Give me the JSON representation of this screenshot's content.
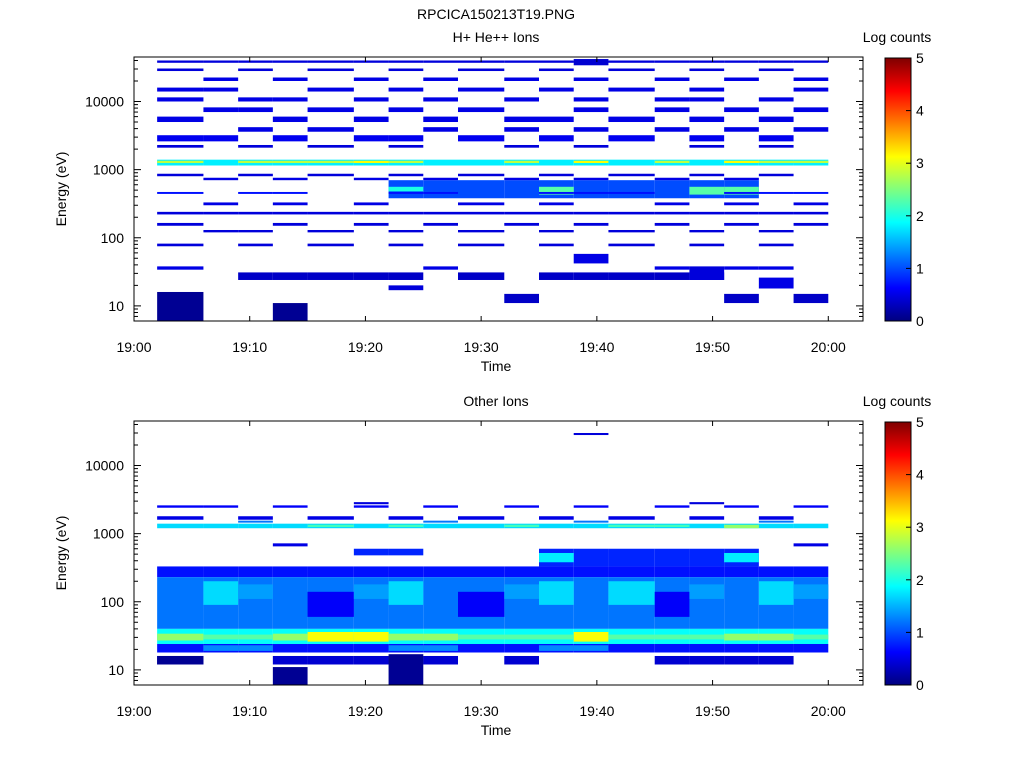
{
  "figure_title": "RPCICA150213T19.PNG",
  "colorbar_colors": [
    "#00007f",
    "#0000ff",
    "#007fff",
    "#00ffff",
    "#7fff7f",
    "#ffff00",
    "#ff7f00",
    "#ff0000",
    "#7f0000"
  ],
  "chart_data": [
    {
      "type": "heatmap",
      "title": "H+ He++ Ions",
      "xlabel": "Time",
      "ylabel": "Energy (eV)",
      "x_scale": "time",
      "y_scale": "log",
      "xlim": [
        "19:00",
        "20:03"
      ],
      "ylim": [
        6,
        45000
      ],
      "x_ticks": [
        "19:00",
        "19:10",
        "19:20",
        "19:30",
        "19:40",
        "19:50",
        "20:00"
      ],
      "y_ticks": [
        10,
        100,
        1000,
        10000
      ],
      "y_tick_labels": [
        "10",
        "100",
        "1000",
        "10000"
      ],
      "colorbar": {
        "label": "Log counts",
        "range": [
          0,
          5
        ],
        "ticks": [
          "0",
          "1",
          "2",
          "3",
          "4",
          "5"
        ]
      },
      "time_bins": [
        "19:02",
        "19:06",
        "19:09",
        "19:12",
        "19:15",
        "19:19",
        "19:22",
        "19:25",
        "19:28",
        "19:32",
        "19:35",
        "19:38",
        "19:41",
        "19:45",
        "19:48",
        "19:51",
        "19:54",
        "19:57"
      ],
      "time_bin_end": "20:00",
      "cells": [
        {
          "bins": "all",
          "e": [
            1150,
            1400
          ],
          "v": 1.8
        },
        {
          "bins": [
            0,
            2,
            3,
            4,
            6,
            9,
            13,
            16,
            17
          ],
          "e": [
            1250,
            1350
          ],
          "v": 2.8
        },
        {
          "bins": [
            5,
            11,
            15
          ],
          "e": [
            1250,
            1350
          ],
          "v": 3.1
        },
        {
          "bins": [
            6,
            7,
            8,
            9,
            10,
            11,
            12,
            13,
            14,
            15
          ],
          "e": [
            380,
            700
          ],
          "v": 1.0
        },
        {
          "bins": [
            10,
            14,
            15
          ],
          "e": [
            430,
            560
          ],
          "v": 2.3
        },
        {
          "bins": [
            6
          ],
          "e": [
            480,
            560
          ],
          "v": 2.0
        },
        {
          "bins": [
            0,
            2,
            3,
            6,
            7,
            10,
            11,
            12,
            15,
            16,
            17
          ],
          "e": [
            440,
            470
          ],
          "v": 0.7
        },
        {
          "bins": "all",
          "e": [
            220,
            240
          ],
          "v": 0.45
        },
        {
          "bins": [
            1,
            3,
            5,
            8,
            10,
            13,
            15,
            17
          ],
          "e": [
            300,
            330
          ],
          "v": 0.5
        },
        {
          "bins": [
            0,
            2,
            4,
            6,
            9,
            11,
            14,
            16
          ],
          "e": [
            2100,
            2300
          ],
          "v": 0.45
        },
        {
          "bins": [
            0,
            1,
            3,
            5,
            6,
            8,
            10,
            12,
            14,
            16
          ],
          "e": [
            2600,
            3200
          ],
          "v": 0.55
        },
        {
          "bins": [
            2,
            4,
            7,
            9,
            11,
            13,
            15,
            17
          ],
          "e": [
            3600,
            4200
          ],
          "v": 0.5
        },
        {
          "bins": [
            0,
            3,
            5,
            7,
            9,
            10,
            12,
            14,
            16
          ],
          "e": [
            5000,
            6000
          ],
          "v": 0.5
        },
        {
          "bins": [
            1,
            2,
            4,
            6,
            8,
            11,
            13,
            15,
            17
          ],
          "e": [
            7000,
            8200
          ],
          "v": 0.5
        },
        {
          "bins": [
            0,
            2,
            3,
            5,
            7,
            9,
            11,
            13,
            14,
            16
          ],
          "e": [
            10000,
            11500
          ],
          "v": 0.5
        },
        {
          "bins": [
            0,
            1,
            4,
            6,
            8,
            10,
            12,
            14,
            17
          ],
          "e": [
            14000,
            16000
          ],
          "v": 0.5
        },
        {
          "bins": [
            1,
            3,
            5,
            7,
            9,
            11,
            13,
            15,
            17
          ],
          "e": [
            20000,
            22500
          ],
          "v": 0.5
        },
        {
          "bins": [
            0,
            2,
            4,
            6,
            8,
            10,
            12,
            14,
            16
          ],
          "e": [
            28000,
            30500
          ],
          "v": 0.45
        },
        {
          "bins": "all",
          "e": [
            37000,
            40000
          ],
          "v": 0.45
        },
        {
          "bins": [
            11
          ],
          "e": [
            34000,
            42000
          ],
          "v": 0.4
        },
        {
          "bins": [
            1,
            3,
            5,
            7,
            9,
            11,
            13,
            15
          ],
          "e": [
            700,
            760
          ],
          "v": 0.5
        },
        {
          "bins": [
            0,
            2,
            4,
            6,
            8,
            10,
            12,
            14,
            16
          ],
          "e": [
            800,
            870
          ],
          "v": 0.45
        },
        {
          "bins": [
            0,
            3,
            5,
            7,
            9,
            11,
            13,
            15,
            17
          ],
          "e": [
            150,
            165
          ],
          "v": 0.45
        },
        {
          "bins": [
            1,
            2,
            4,
            6,
            8,
            10,
            12,
            14,
            16
          ],
          "e": [
            120,
            130
          ],
          "v": 0.45
        },
        {
          "bins": [
            0,
            2,
            4,
            6,
            8,
            10,
            12,
            14,
            16
          ],
          "e": [
            75,
            82
          ],
          "v": 0.45
        },
        {
          "bins": [
            11
          ],
          "e": [
            42,
            58
          ],
          "v": 0.5
        },
        {
          "bins": [
            0,
            7,
            13,
            15,
            16
          ],
          "e": [
            34,
            38
          ],
          "v": 0.5
        },
        {
          "bins": [
            2,
            3,
            4,
            5,
            6,
            8,
            10,
            11,
            12,
            13,
            14
          ],
          "e": [
            24,
            31
          ],
          "v": 0.35
        },
        {
          "bins": [
            14
          ],
          "e": [
            24,
            38
          ],
          "v": 0.45
        },
        {
          "bins": [
            16
          ],
          "e": [
            18,
            26
          ],
          "v": 0.5
        },
        {
          "bins": [
            6
          ],
          "e": [
            17,
            20
          ],
          "v": 0.45
        },
        {
          "bins": [
            0
          ],
          "e": [
            6,
            16
          ],
          "v": 0.1
        },
        {
          "bins": [
            3
          ],
          "e": [
            6,
            11
          ],
          "v": 0.1
        },
        {
          "bins": [
            9,
            15,
            17
          ],
          "e": [
            11,
            15
          ],
          "v": 0.35
        }
      ]
    },
    {
      "type": "heatmap",
      "title": "Other Ions",
      "xlabel": "Time",
      "ylabel": "Energy (eV)",
      "x_scale": "time",
      "y_scale": "log",
      "xlim": [
        "19:00",
        "20:03"
      ],
      "ylim": [
        6,
        45000
      ],
      "x_ticks": [
        "19:00",
        "19:10",
        "19:20",
        "19:30",
        "19:40",
        "19:50",
        "20:00"
      ],
      "y_ticks": [
        10,
        100,
        1000,
        10000
      ],
      "y_tick_labels": [
        "10",
        "100",
        "1000",
        "10000"
      ],
      "colorbar": {
        "label": "Log counts",
        "range": [
          0,
          5
        ],
        "ticks": [
          "0",
          "1",
          "2",
          "3",
          "4",
          "5"
        ]
      },
      "time_bins": [
        "19:02",
        "19:06",
        "19:09",
        "19:12",
        "19:15",
        "19:19",
        "19:22",
        "19:25",
        "19:28",
        "19:32",
        "19:35",
        "19:38",
        "19:41",
        "19:45",
        "19:48",
        "19:51",
        "19:54",
        "19:57"
      ],
      "time_bin_end": "20:00",
      "cells": [
        {
          "bins": "all",
          "e": [
            1200,
            1400
          ],
          "v": 1.7
        },
        {
          "bins": [
            4,
            6,
            9,
            12,
            13
          ],
          "e": [
            1250,
            1350
          ],
          "v": 2.2
        },
        {
          "bins": [
            15
          ],
          "e": [
            1200,
            1350
          ],
          "v": 2.6
        },
        {
          "bins": [
            0,
            1,
            3,
            5,
            7,
            9,
            11,
            13,
            15,
            17
          ],
          "e": [
            2400,
            2600
          ],
          "v": 0.6
        },
        {
          "bins": [
            0,
            2,
            4,
            6,
            8,
            10,
            12,
            14,
            16
          ],
          "e": [
            1600,
            1800
          ],
          "v": 0.5
        },
        {
          "bins": [
            2,
            7,
            11,
            16
          ],
          "e": [
            1450,
            1550
          ],
          "v": 1.2
        },
        {
          "bins": [
            11
          ],
          "e": [
            28000,
            30000
          ],
          "v": 0.45
        },
        {
          "bins": [
            5,
            14
          ],
          "e": [
            2700,
            2900
          ],
          "v": 0.45
        },
        {
          "bins": [
            3,
            17
          ],
          "e": [
            650,
            720
          ],
          "v": 0.5
        },
        {
          "bins": [
            5,
            6
          ],
          "e": [
            480,
            600
          ],
          "v": 0.8
        },
        {
          "bins": [
            0,
            1,
            2,
            3,
            4,
            5,
            6,
            7,
            8,
            9,
            10,
            11,
            12,
            13,
            14,
            15,
            16,
            17
          ],
          "e": [
            230,
            330
          ],
          "v": 0.7
        },
        {
          "bins": [
            10,
            11,
            12,
            13,
            14,
            15
          ],
          "e": [
            330,
            600
          ],
          "v": 0.8
        },
        {
          "bins": [
            10,
            15
          ],
          "e": [
            380,
            520
          ],
          "v": 1.8
        },
        {
          "bins": [
            0,
            1,
            2,
            3,
            4,
            5,
            6,
            7,
            8,
            9,
            10,
            11,
            12,
            13,
            14,
            15,
            16,
            17
          ],
          "e": [
            40,
            230
          ],
          "v": 1.2
        },
        {
          "bins": [
            1,
            6,
            10,
            12,
            16
          ],
          "e": [
            90,
            200
          ],
          "v": 1.7
        },
        {
          "bins": [
            4,
            8,
            13
          ],
          "e": [
            60,
            140
          ],
          "v": 0.6
        },
        {
          "bins": [
            2,
            5,
            9,
            14,
            17
          ],
          "e": [
            110,
            180
          ],
          "v": 1.4
        },
        {
          "bins": "all",
          "e": [
            24,
            40
          ],
          "v": 1.9
        },
        {
          "bins": [
            4,
            5,
            11
          ],
          "e": [
            26,
            36
          ],
          "v": 3.1
        },
        {
          "bins": [
            0,
            3,
            6,
            7,
            15,
            16
          ],
          "e": [
            27,
            34
          ],
          "v": 2.6
        },
        {
          "bins": [
            1,
            2,
            8,
            9,
            10,
            12,
            13,
            14,
            17
          ],
          "e": [
            28,
            33
          ],
          "v": 2.3
        },
        {
          "bins": "all",
          "e": [
            18,
            24
          ],
          "v": 0.7
        },
        {
          "bins": [
            1,
            2,
            6,
            7,
            10,
            11
          ],
          "e": [
            19,
            23
          ],
          "v": 1.3
        },
        {
          "bins": [
            0,
            3,
            4,
            5,
            6,
            7,
            9,
            13,
            14,
            15,
            16
          ],
          "e": [
            12,
            16
          ],
          "v": 0.4
        },
        {
          "bins": [
            3
          ],
          "e": [
            6,
            11
          ],
          "v": 0.1
        },
        {
          "bins": [
            6
          ],
          "e": [
            6,
            17
          ],
          "v": 0.1
        },
        {
          "bins": [
            0
          ],
          "e": [
            12,
            16
          ],
          "v": 0.1
        }
      ]
    }
  ]
}
